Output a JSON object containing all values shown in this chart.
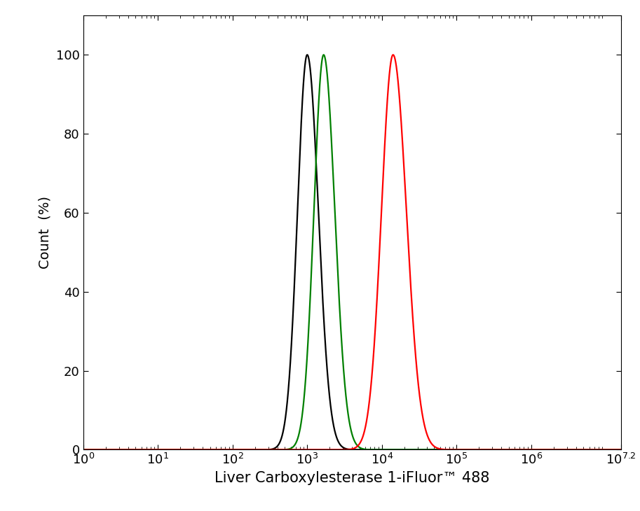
{
  "xlabel": "Liver Carboxylesterase 1-iFluor™ 488",
  "ylabel": "Count  (%)",
  "xlim_log": [
    0,
    7.2
  ],
  "ylim": [
    0,
    110
  ],
  "yticks": [
    0,
    20,
    40,
    60,
    80,
    100
  ],
  "xtick_positions": [
    0,
    1,
    2,
    3,
    4,
    5,
    6,
    7.2
  ],
  "black_peak": 3.0,
  "black_sigma": 0.13,
  "green_peak": 3.22,
  "green_sigma": 0.13,
  "red_peak": 4.15,
  "red_sigma": 0.155,
  "black_color": "#000000",
  "green_color": "#008000",
  "red_color": "#ff0000",
  "line_width": 1.6,
  "background_color": "#ffffff",
  "xlabel_fontsize": 15,
  "ylabel_fontsize": 14,
  "tick_fontsize": 13
}
